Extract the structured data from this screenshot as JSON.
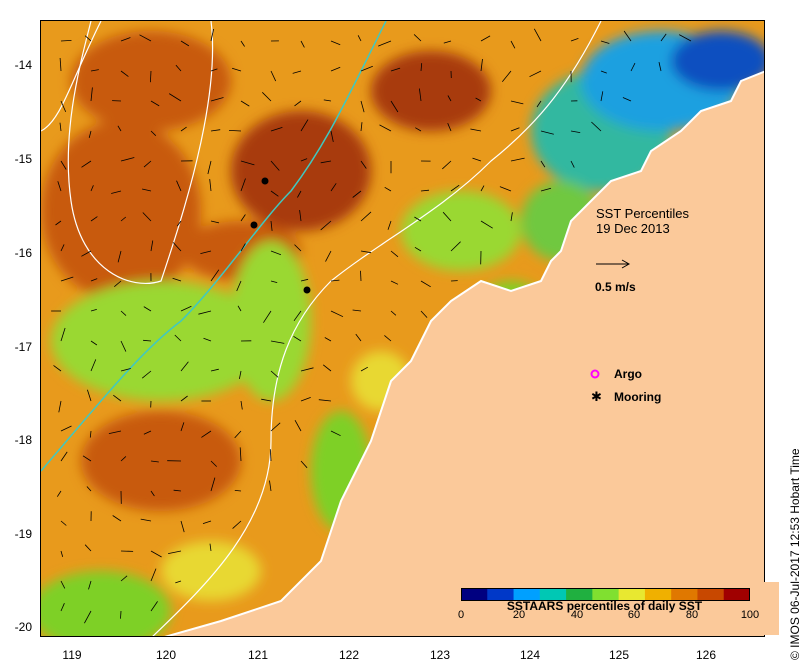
{
  "map": {
    "title_line1": "SST Percentiles",
    "title_line2": "19 Dec 2013",
    "scale_label": "0.5 m/s",
    "y_ticks": [
      "-14",
      "-15",
      "-16",
      "-17",
      "-18",
      "-19",
      "-20"
    ],
    "x_ticks": [
      "119",
      "120",
      "121",
      "122",
      "123",
      "124",
      "125",
      "126"
    ],
    "lat_range": [
      -20.1,
      -13.6
    ],
    "lon_range": [
      118.7,
      126.7
    ]
  },
  "legend": {
    "title": "SSTAARS percentiles of daily SST",
    "ticks": [
      "0",
      "20",
      "40",
      "60",
      "80",
      "100"
    ],
    "colors": [
      "#000080",
      "#0038c8",
      "#00a0ff",
      "#00c8b4",
      "#20b040",
      "#80e030",
      "#e8e830",
      "#f0b000",
      "#e07800",
      "#c84800",
      "#a00000"
    ],
    "argo_label": "Argo",
    "mooring_label": "Mooring"
  },
  "colors": {
    "land": "#fbc99a",
    "coast": "#ffffff",
    "isobath_cyan": "#40c8c0",
    "isobath_white": "#ffffff",
    "argo": "#ff00ff"
  },
  "credit": "© IMOS 06-Jul-2017 12:53 Hobart Time"
}
